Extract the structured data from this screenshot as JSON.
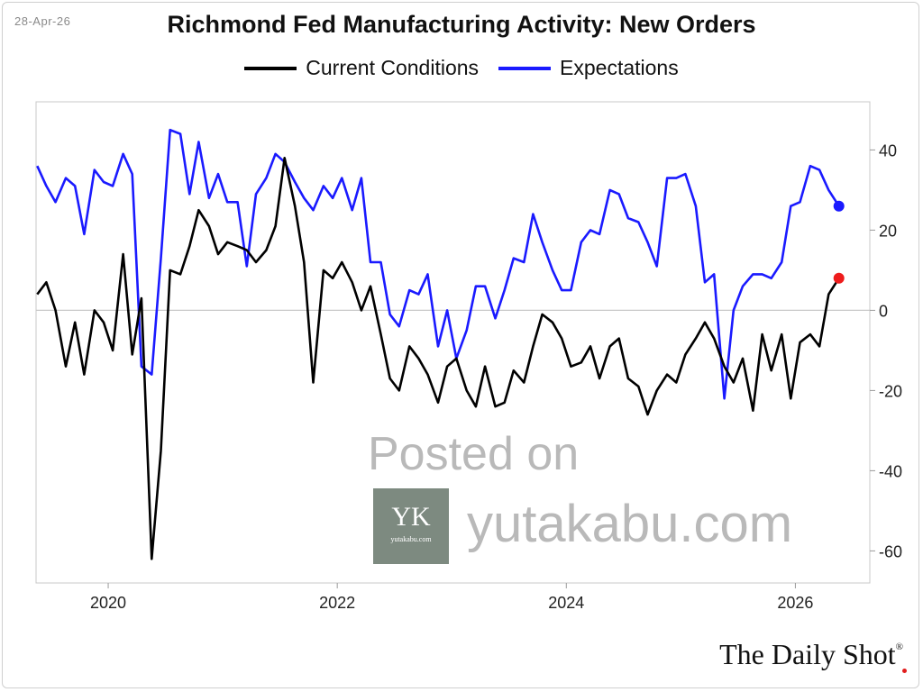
{
  "date_label": "28-Apr-26",
  "brand": {
    "name": "The Daily Shot",
    "mark": "®"
  },
  "watermark": {
    "posted": "Posted on",
    "site": "yutakabu.com",
    "logo_letters": "YK",
    "logo_small": "yutakabu.com"
  },
  "colors": {
    "current": "#000000",
    "expectations": "#1a1aff",
    "current_end_dot": "#ee1c1c",
    "expectations_end_dot": "#1a1aff",
    "zero_line": "#c8c8c8"
  },
  "chart_data": {
    "type": "line",
    "title": "Richmond Fed Manufacturing Activity: New Orders",
    "xlabel": "",
    "ylabel": "",
    "xlim": [
      2019.37,
      2026.65
    ],
    "ylim": [
      -68,
      52
    ],
    "y_ticks": [
      40,
      20,
      0,
      -20,
      -40,
      -60
    ],
    "y_tick_labels": [
      "40",
      "20",
      "0",
      "-20",
      "-40",
      "-60"
    ],
    "x_ticks": [
      2020,
      2022,
      2024,
      2026
    ],
    "x_tick_labels": [
      "2020",
      "2022",
      "2024",
      "2026"
    ],
    "legend_position": "top-center",
    "series": [
      {
        "name": "Current Conditions",
        "points": [
          [
            2019.38,
            4
          ],
          [
            2019.46,
            7
          ],
          [
            2019.54,
            0
          ],
          [
            2019.63,
            -14
          ],
          [
            2019.71,
            -3
          ],
          [
            2019.79,
            -16
          ],
          [
            2019.88,
            0
          ],
          [
            2019.96,
            -3
          ],
          [
            2020.04,
            -10
          ],
          [
            2020.13,
            14
          ],
          [
            2020.21,
            -11
          ],
          [
            2020.29,
            3
          ],
          [
            2020.38,
            -62
          ],
          [
            2020.46,
            -35
          ],
          [
            2020.54,
            10
          ],
          [
            2020.63,
            9
          ],
          [
            2020.71,
            16
          ],
          [
            2020.79,
            25
          ],
          [
            2020.88,
            21
          ],
          [
            2020.96,
            14
          ],
          [
            2021.04,
            17
          ],
          [
            2021.13,
            16
          ],
          [
            2021.21,
            15
          ],
          [
            2021.29,
            12
          ],
          [
            2021.38,
            15
          ],
          [
            2021.46,
            21
          ],
          [
            2021.54,
            38
          ],
          [
            2021.63,
            26
          ],
          [
            2021.71,
            12
          ],
          [
            2021.79,
            -18
          ],
          [
            2021.88,
            10
          ],
          [
            2021.96,
            8
          ],
          [
            2022.04,
            12
          ],
          [
            2022.13,
            7
          ],
          [
            2022.21,
            0
          ],
          [
            2022.29,
            6
          ],
          [
            2022.38,
            -6
          ],
          [
            2022.46,
            -17
          ],
          [
            2022.54,
            -20
          ],
          [
            2022.63,
            -9
          ],
          [
            2022.71,
            -12
          ],
          [
            2022.79,
            -16
          ],
          [
            2022.88,
            -23
          ],
          [
            2022.96,
            -14
          ],
          [
            2023.04,
            -12
          ],
          [
            2023.13,
            -20
          ],
          [
            2023.21,
            -24
          ],
          [
            2023.29,
            -14
          ],
          [
            2023.38,
            -24
          ],
          [
            2023.46,
            -23
          ],
          [
            2023.54,
            -15
          ],
          [
            2023.63,
            -18
          ],
          [
            2023.71,
            -9
          ],
          [
            2023.79,
            -1
          ],
          [
            2023.88,
            -3
          ],
          [
            2023.96,
            -7
          ],
          [
            2024.04,
            -14
          ],
          [
            2024.13,
            -13
          ],
          [
            2024.21,
            -9
          ],
          [
            2024.29,
            -17
          ],
          [
            2024.38,
            -9
          ],
          [
            2024.46,
            -7
          ],
          [
            2024.54,
            -17
          ],
          [
            2024.63,
            -19
          ],
          [
            2024.71,
            -26
          ],
          [
            2024.79,
            -20
          ],
          [
            2024.88,
            -16
          ],
          [
            2024.96,
            -18
          ],
          [
            2025.04,
            -11
          ],
          [
            2025.13,
            -7
          ],
          [
            2025.21,
            -3
          ],
          [
            2025.29,
            -7
          ],
          [
            2025.38,
            -14
          ],
          [
            2025.46,
            -18
          ],
          [
            2025.54,
            -12
          ],
          [
            2025.63,
            -25
          ],
          [
            2025.71,
            -6
          ],
          [
            2025.79,
            -15
          ],
          [
            2025.88,
            -6
          ],
          [
            2025.96,
            -22
          ],
          [
            2026.04,
            -8
          ],
          [
            2026.13,
            -6
          ],
          [
            2026.21,
            -9
          ],
          [
            2026.29,
            4
          ],
          [
            2026.38,
            8
          ]
        ]
      },
      {
        "name": "Expectations",
        "points": [
          [
            2019.38,
            36
          ],
          [
            2019.46,
            31
          ],
          [
            2019.54,
            27
          ],
          [
            2019.63,
            33
          ],
          [
            2019.71,
            31
          ],
          [
            2019.79,
            19
          ],
          [
            2019.88,
            35
          ],
          [
            2019.96,
            32
          ],
          [
            2020.04,
            31
          ],
          [
            2020.13,
            39
          ],
          [
            2020.21,
            34
          ],
          [
            2020.29,
            -14
          ],
          [
            2020.38,
            -16
          ],
          [
            2020.46,
            13
          ],
          [
            2020.54,
            45
          ],
          [
            2020.63,
            44
          ],
          [
            2020.71,
            29
          ],
          [
            2020.79,
            42
          ],
          [
            2020.88,
            28
          ],
          [
            2020.96,
            34
          ],
          [
            2021.04,
            27
          ],
          [
            2021.13,
            27
          ],
          [
            2021.21,
            11
          ],
          [
            2021.29,
            29
          ],
          [
            2021.38,
            33
          ],
          [
            2021.46,
            39
          ],
          [
            2021.54,
            37
          ],
          [
            2021.63,
            32
          ],
          [
            2021.71,
            28
          ],
          [
            2021.79,
            25
          ],
          [
            2021.88,
            31
          ],
          [
            2021.96,
            28
          ],
          [
            2022.04,
            33
          ],
          [
            2022.13,
            25
          ],
          [
            2022.21,
            33
          ],
          [
            2022.29,
            12
          ],
          [
            2022.38,
            12
          ],
          [
            2022.46,
            -1
          ],
          [
            2022.54,
            -4
          ],
          [
            2022.63,
            5
          ],
          [
            2022.71,
            4
          ],
          [
            2022.79,
            9
          ],
          [
            2022.88,
            -9
          ],
          [
            2022.96,
            0
          ],
          [
            2023.04,
            -12
          ],
          [
            2023.13,
            -5
          ],
          [
            2023.21,
            6
          ],
          [
            2023.29,
            6
          ],
          [
            2023.38,
            -2
          ],
          [
            2023.46,
            5
          ],
          [
            2023.54,
            13
          ],
          [
            2023.63,
            12
          ],
          [
            2023.71,
            24
          ],
          [
            2023.79,
            17
          ],
          [
            2023.88,
            10
          ],
          [
            2023.96,
            5
          ],
          [
            2024.04,
            5
          ],
          [
            2024.13,
            17
          ],
          [
            2024.21,
            20
          ],
          [
            2024.29,
            19
          ],
          [
            2024.38,
            30
          ],
          [
            2024.46,
            29
          ],
          [
            2024.54,
            23
          ],
          [
            2024.63,
            22
          ],
          [
            2024.71,
            17
          ],
          [
            2024.79,
            11
          ],
          [
            2024.88,
            33
          ],
          [
            2024.96,
            33
          ],
          [
            2025.04,
            34
          ],
          [
            2025.13,
            26
          ],
          [
            2025.21,
            7
          ],
          [
            2025.29,
            9
          ],
          [
            2025.38,
            -22
          ],
          [
            2025.46,
            0
          ],
          [
            2025.54,
            6
          ],
          [
            2025.63,
            9
          ],
          [
            2025.71,
            9
          ],
          [
            2025.79,
            8
          ],
          [
            2025.88,
            12
          ],
          [
            2025.96,
            26
          ],
          [
            2026.04,
            27
          ],
          [
            2026.13,
            36
          ],
          [
            2026.21,
            35
          ],
          [
            2026.29,
            30
          ],
          [
            2026.38,
            26
          ]
        ]
      }
    ]
  }
}
